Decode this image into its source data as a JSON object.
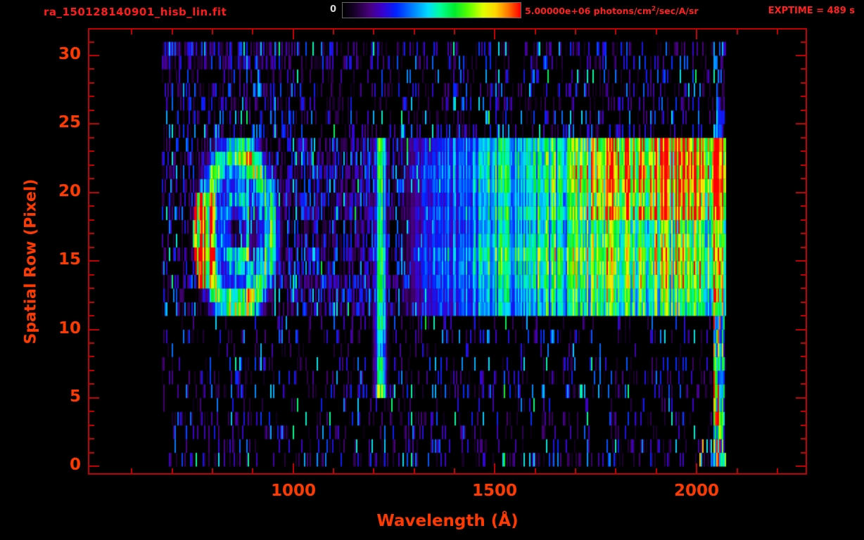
{
  "window": {
    "background": "#000000"
  },
  "header": {
    "filename": "ra_150128140901_hisb_lin.fit",
    "colorbar_min_label": "0",
    "colorbar_max_value": "5.00000e+06",
    "colorbar_units_pre": " photons/cm",
    "colorbar_units_sup": "2",
    "colorbar_units_post": "/sec/A/sr",
    "exptime_label": "EXPTIME = 489 s"
  },
  "axes": {
    "xlabel": "Wavelength (Å)",
    "ylabel": "Spatial Row (Pixel)",
    "xticks": [
      "1000",
      "1500",
      "2000"
    ],
    "yticks": [
      "0",
      "5",
      "10",
      "15",
      "20",
      "25",
      "30"
    ]
  },
  "chart_data": {
    "type": "heatmap",
    "title": "ra_150128140901_hisb_lin.fit",
    "xlabel": "Wavelength (Å)",
    "ylabel": "Spatial Row (Pixel)",
    "xlim": [
      495,
      2270
    ],
    "ylim": [
      -0.5,
      31.9
    ],
    "xticks": [
      1000,
      1500,
      2000
    ],
    "x_minor_step": 100,
    "yticks": [
      0,
      5,
      10,
      15,
      20,
      25,
      30
    ],
    "y_minor_step": 1,
    "colorbar": {
      "min": 0,
      "max": 5000000,
      "max_label": "5.00000e+06",
      "units": "photons/cm^2/sec/A/sr",
      "colormap": "rainbow black-purple-blue-cyan-green-yellow-orange-red",
      "legend_position": "top-center"
    },
    "exptime_s": 489,
    "data_extent": {
      "wavelength_A": [
        675,
        2070
      ],
      "rows": [
        0,
        31
      ]
    },
    "features": [
      {
        "name": "extended-source-blob",
        "wavelength_A": [
          740,
          1000
        ],
        "rows": [
          10,
          24
        ],
        "description": "limb-brightened oval: bright green outer ring, inner green arc near 800-880 A, dark core, hot orange-red left edge at 760-805 A rows 13-20"
      },
      {
        "name": "lyman-alpha-emission-line",
        "wavelength_A": [
          1205,
          1230
        ],
        "rows": [
          5.3,
          24
        ],
        "description": "narrow vertical green stripe centered ~1217 A, brighter knot at its bottom tip near row 6"
      },
      {
        "name": "continuum-band",
        "wavelength_A": [
          1235,
          2070
        ],
        "rows": [
          11,
          24
        ],
        "description": "broad band: blue near 1300 A, cyan ~1500 A, green beyond 1700 A; yellow-orange maximum in rows 19-23 between 1800-2060 A"
      },
      {
        "name": "detector-edge-column",
        "wavelength_A": [
          2042,
          2070
        ],
        "rows": [
          0,
          24
        ],
        "description": "bright multicolor speckled column at right edge of data, with red/orange pixels near rows 17-23"
      },
      {
        "name": "background-speckle",
        "wavelength_A": [
          675,
          2070
        ],
        "rows": [
          0,
          31
        ],
        "description": "sparse purple/blue noise over full frame, denser in rows 25-31 below 1000 A and inside the main band"
      }
    ]
  },
  "colors": {
    "background": "#000000",
    "frame": "#c00000",
    "title_text": "#ff1c1c",
    "axis_text": "#ff3a00",
    "header_text": "#ff2120",
    "colorbar_min_text": "#d8d8d8"
  }
}
